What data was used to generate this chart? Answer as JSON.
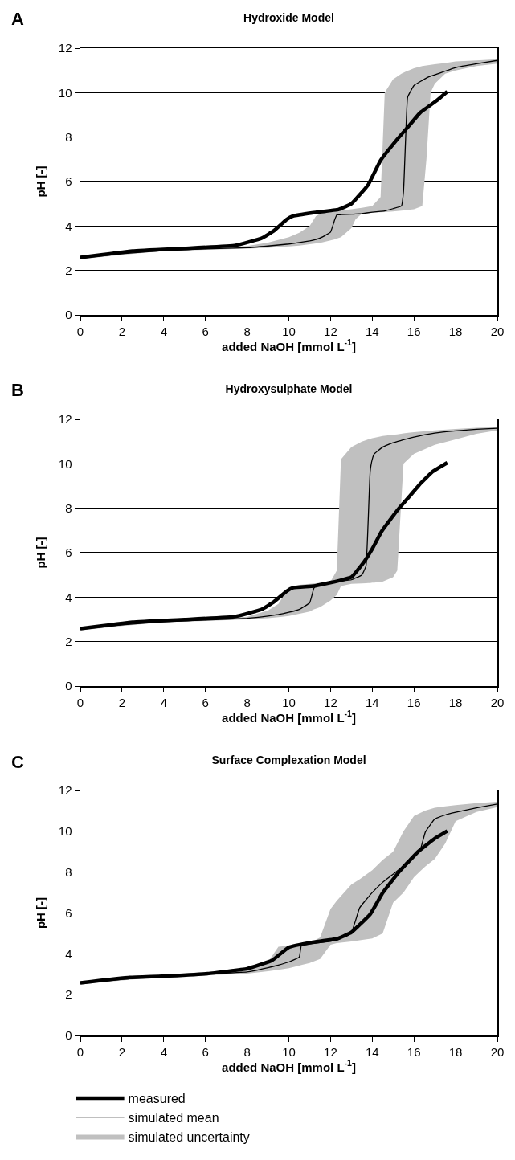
{
  "chart_data": [
    {
      "type": "line",
      "title": "Hydroxide Model",
      "xlabel": "added NaOH [mmol L$^{-1}$]",
      "ylabel": "pH [-]",
      "annotations": [
        "A"
      ],
      "xlim": [
        0,
        20
      ],
      "xticks": [
        0,
        2,
        4,
        6,
        8,
        10,
        12,
        14,
        16,
        18,
        20
      ],
      "ylim": [
        0,
        12
      ],
      "yticks": [
        0,
        2,
        4,
        6,
        8,
        10,
        12
      ],
      "grid": "y",
      "legend": false,
      "line_style": "solid",
      "series": [
        {
          "color": "#000000",
          "x": [
            0,
            2.5,
            5,
            7.45,
            8.7,
            9.3,
            9.9,
            10.2,
            11.2,
            12.4,
            13.0,
            13.8,
            14.4,
            15.2,
            15.8,
            16.3,
            17.1,
            17.6
          ],
          "values": [
            2.58,
            2.87,
            2.99,
            3.13,
            3.45,
            3.8,
            4.3,
            4.45,
            4.6,
            4.75,
            5.0,
            5.85,
            6.95,
            7.9,
            8.55,
            9.1,
            9.65,
            10.05
          ]
        },
        {
          "color": "#000000",
          "x": [
            0,
            2,
            4,
            6,
            8,
            9,
            10,
            10.5,
            11,
            11.3,
            11.6,
            12,
            12.2,
            12.3,
            12.5,
            13,
            13.2,
            13.5,
            14,
            14.4,
            14.6,
            15,
            15.4,
            15.5,
            15.6,
            15.7,
            16,
            16.4,
            16.6,
            16.8,
            17,
            17.5,
            18,
            19,
            20
          ],
          "values": [
            2.55,
            2.75,
            2.9,
            2.97,
            3.02,
            3.1,
            3.19,
            3.26,
            3.33,
            3.39,
            3.5,
            3.73,
            4.28,
            4.5,
            4.51,
            4.53,
            4.54,
            4.56,
            4.62,
            4.66,
            4.68,
            4.78,
            4.9,
            5.55,
            7.9,
            9.8,
            10.32,
            10.55,
            10.66,
            10.74,
            10.8,
            10.97,
            11.13,
            11.3,
            11.45
          ],
          "lower": [
            2.5,
            2.7,
            2.87,
            2.93,
            2.98,
            3.02,
            3.08,
            3.12,
            3.18,
            3.22,
            3.26,
            3.35,
            3.4,
            3.43,
            3.5,
            3.9,
            4.3,
            4.55,
            4.6,
            4.62,
            4.63,
            4.65,
            4.69,
            4.7,
            4.71,
            4.72,
            4.75,
            4.9,
            7,
            10.0,
            10.4,
            10.85,
            11.0,
            11.2,
            11.3
          ],
          "upper": [
            2.6,
            2.8,
            2.93,
            3.0,
            3.1,
            3.25,
            3.5,
            3.7,
            4.0,
            4.45,
            4.6,
            4.65,
            4.67,
            4.68,
            4.7,
            4.75,
            4.78,
            4.82,
            4.9,
            5.3,
            10.0,
            10.6,
            10.85,
            10.9,
            10.94,
            10.98,
            11.1,
            11.2,
            11.22,
            11.25,
            11.28,
            11.33,
            11.4,
            11.45,
            11.5
          ]
        }
      ]
    },
    {
      "type": "line",
      "title": "Hydroxysulphate Model",
      "xlabel": "added NaOH [mmol L$^{-1}$]",
      "ylabel": "pH [-]",
      "annotations": [
        "B"
      ],
      "xlim": [
        0,
        20
      ],
      "xticks": [
        0,
        2,
        4,
        6,
        8,
        10,
        12,
        14,
        16,
        18,
        20
      ],
      "ylim": [
        0,
        12
      ],
      "yticks": [
        0,
        2,
        4,
        6,
        8,
        10,
        12
      ],
      "grid": "y",
      "legend": false,
      "line_style": "solid",
      "series": [
        {
          "color": "#000000",
          "x": [
            0,
            2.5,
            5,
            7.45,
            8.7,
            9.3,
            9.9,
            10.2,
            11.2,
            12.4,
            13.0,
            13.5,
            14.0,
            14.45,
            15.2,
            15.85,
            16.3,
            16.9,
            17.6
          ],
          "values": [
            2.58,
            2.87,
            2.99,
            3.13,
            3.45,
            3.8,
            4.27,
            4.42,
            4.5,
            4.74,
            4.9,
            5.45,
            6.17,
            6.96,
            7.9,
            8.6,
            9.1,
            9.65,
            10.05
          ]
        },
        {
          "color": "#000000",
          "x": [
            0,
            2,
            4,
            6,
            8,
            9,
            9.5,
            10,
            10.5,
            11,
            11.2,
            11.35,
            11.5,
            12,
            12.3,
            12.5,
            13,
            13.5,
            13.7,
            13.8,
            13.9,
            14,
            14.1,
            14.5,
            15,
            15.2,
            15.5,
            16,
            17,
            18,
            19,
            20
          ],
          "values": [
            2.55,
            2.75,
            2.9,
            2.97,
            3.05,
            3.15,
            3.22,
            3.32,
            3.45,
            3.75,
            4.4,
            4.58,
            4.6,
            4.65,
            4.7,
            4.72,
            4.78,
            5.0,
            5.4,
            7.3,
            9.65,
            10.2,
            10.45,
            10.75,
            10.95,
            11.0,
            11.08,
            11.2,
            11.38,
            11.48,
            11.55,
            11.6
          ],
          "lower": [
            2.5,
            2.7,
            2.87,
            2.93,
            3.0,
            3.05,
            3.1,
            3.15,
            3.25,
            3.35,
            3.45,
            3.5,
            3.55,
            3.85,
            4.1,
            4.5,
            4.6,
            4.62,
            4.63,
            4.64,
            4.64,
            4.65,
            4.65,
            4.7,
            4.9,
            5.2,
            10.0,
            10.45,
            10.85,
            11.1,
            11.35,
            11.5
          ],
          "upper": [
            2.6,
            2.8,
            2.93,
            3.0,
            3.12,
            3.4,
            3.7,
            4.45,
            4.55,
            4.6,
            4.62,
            4.63,
            4.65,
            4.7,
            5.2,
            10.2,
            10.75,
            11.0,
            11.06,
            11.1,
            11.12,
            11.15,
            11.17,
            11.25,
            11.3,
            11.32,
            11.37,
            11.42,
            11.5,
            11.57,
            11.62,
            11.65
          ]
        }
      ]
    },
    {
      "type": "line",
      "title": "Surface Complexation Model",
      "xlabel": "added NaOH [mmol L$^{-1}$]",
      "ylabel": "pH [-]",
      "annotations": [
        "C",
        "simulated uncertainty"
      ],
      "xlim": [
        0,
        20
      ],
      "xticks": [
        0,
        2,
        4,
        6,
        8,
        10,
        12,
        14,
        16,
        18,
        20
      ],
      "ylim": [
        0,
        12
      ],
      "yticks": [
        0,
        2,
        4,
        6,
        8,
        10,
        12
      ],
      "grid": "y",
      "legend": "bottom",
      "line_style": "solid",
      "series": [
        {
          "name": "measured",
          "color": "#000000",
          "x": [
            0,
            2.37,
            3.9,
            6.1,
            8.0,
            9.2,
            10.0,
            11.1,
            12.3,
            13.0,
            13.9,
            14.5,
            15.3,
            16.2,
            17.0,
            17.6
          ],
          "values": [
            2.58,
            2.84,
            2.9,
            3.03,
            3.27,
            3.68,
            4.32,
            4.56,
            4.73,
            5.05,
            5.94,
            6.98,
            8.03,
            9.0,
            9.65,
            10.02
          ]
        },
        {
          "name": "simulated mean",
          "color": "#000000",
          "x": [
            0,
            2,
            4,
            6,
            8,
            9,
            9.5,
            10,
            10.5,
            10.6,
            11,
            11.5,
            12,
            12.3,
            13,
            13.4,
            14,
            14.5,
            15,
            15.5,
            16,
            16.3,
            16.55,
            17,
            17.5,
            18,
            19,
            20
          ],
          "values": [
            2.55,
            2.75,
            2.9,
            3.0,
            3.11,
            3.32,
            3.45,
            3.6,
            3.84,
            4.4,
            4.48,
            4.55,
            4.62,
            4.68,
            5.05,
            6.26,
            7.0,
            7.5,
            7.9,
            8.3,
            8.75,
            9.08,
            9.97,
            10.6,
            10.8,
            10.93,
            11.15,
            11.34
          ],
          "lower": [
            2.5,
            2.7,
            2.87,
            2.95,
            3.03,
            3.15,
            3.22,
            3.3,
            3.42,
            3.45,
            3.55,
            3.75,
            4.45,
            4.52,
            4.6,
            4.66,
            4.75,
            5.0,
            6.5,
            7.0,
            7.75,
            8.05,
            8.28,
            8.65,
            9.4,
            10.5,
            10.95,
            11.18
          ],
          "upper": [
            2.6,
            2.8,
            2.93,
            3.05,
            3.2,
            3.6,
            4.35,
            4.4,
            4.45,
            4.47,
            4.52,
            4.8,
            6.2,
            6.6,
            7.4,
            7.65,
            8.1,
            8.6,
            9.0,
            10.0,
            10.75,
            10.9,
            11.02,
            11.15,
            11.22,
            11.28,
            11.38,
            11.45
          ]
        }
      ]
    }
  ]
}
